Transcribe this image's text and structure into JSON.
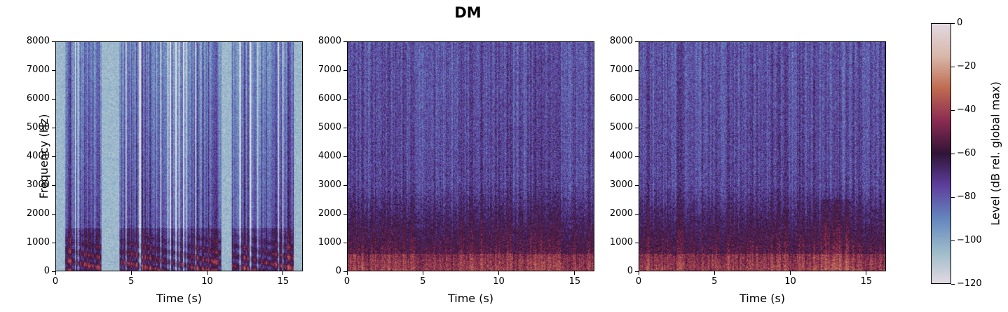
{
  "title": "DM",
  "chart_data": {
    "type": "heatmap",
    "title": "DM",
    "panels": [
      {
        "index": 0,
        "description": "Spectrogram panel 1 (high contrast, speech harmonics visible, silent gaps near 3-4 s and 11-11.5 s)",
        "xlabel": "Time (s)",
        "ylabel": "Frequency (Hz)",
        "xlim": [
          0,
          16.3
        ],
        "ylim": [
          0,
          8000
        ]
      },
      {
        "index": 1,
        "description": "Spectrogram panel 2 (noisier, mostly -60 to -90 dB, energy concentrated below 3000 Hz)",
        "xlabel": "Time (s)",
        "ylabel": "",
        "xlim": [
          0,
          16.3
        ],
        "ylim": [
          0,
          8000
        ]
      },
      {
        "index": 2,
        "description": "Spectrogram panel 3 (noisier, energy concentrated below 2500 Hz, peaks around 13 s)",
        "xlabel": "Time (s)",
        "ylabel": "",
        "xlim": [
          0,
          16.3
        ],
        "ylim": [
          0,
          8000
        ]
      }
    ],
    "x_ticks": [
      "0",
      "5",
      "10",
      "15"
    ],
    "x_tick_values": [
      0,
      5,
      10,
      15
    ],
    "y_ticks": [
      "0",
      "1000",
      "2000",
      "3000",
      "4000",
      "5000",
      "6000",
      "7000",
      "8000"
    ],
    "y_tick_values": [
      0,
      1000,
      2000,
      3000,
      4000,
      5000,
      6000,
      7000,
      8000
    ],
    "colorbar": {
      "label": "Level (dB rel. global max)",
      "ticks": [
        "0",
        "−20",
        "−40",
        "−60",
        "−80",
        "−100",
        "−120"
      ],
      "tick_values": [
        0,
        -20,
        -40,
        -60,
        -80,
        -100,
        -120
      ],
      "range": [
        -120,
        0
      ],
      "colormap": "twilight",
      "colors": [
        "#e2d9e2",
        "#9bbac9",
        "#6486be",
        "#5e3f9e",
        "#2f1436",
        "#8a2b52",
        "#c06a4f",
        "#d8b7a9",
        "#e2d9e2"
      ]
    }
  },
  "labels": {
    "xlabel": "Time (s)",
    "ylabel": "Frequency (Hz)",
    "cbar_label": "Level (dB rel. global max)"
  }
}
